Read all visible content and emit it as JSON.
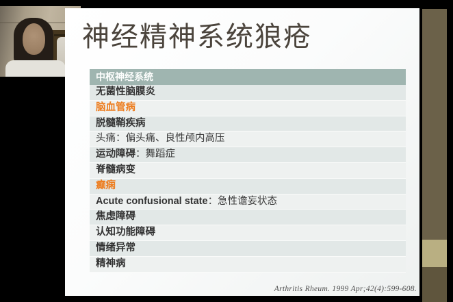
{
  "slide": {
    "title": "神经精神系统狼疮",
    "table": {
      "header": "中枢神经系统",
      "rows": [
        {
          "bold": "无菌性脑膜炎",
          "normal": "",
          "accent": false
        },
        {
          "bold": "脑血管病",
          "normal": "",
          "accent": true
        },
        {
          "bold": "脱髓鞘疾病",
          "normal": "",
          "accent": false
        },
        {
          "bold": "",
          "normal": "头痛：偏头痛、良性颅内高压",
          "accent": false
        },
        {
          "bold": "运动障碍",
          "normal": "：舞蹈症",
          "accent": false
        },
        {
          "bold": "脊髓病变",
          "normal": "",
          "accent": false
        },
        {
          "bold": "癫痫",
          "normal": "",
          "accent": true
        },
        {
          "bold": "Acute confusional state",
          "normal": "：急性谵妄状态",
          "accent": false
        },
        {
          "bold": "焦虑障碍",
          "normal": "",
          "accent": false
        },
        {
          "bold": "认知功能障碍",
          "normal": "",
          "accent": false
        },
        {
          "bold": "情绪异常",
          "normal": "",
          "accent": false
        },
        {
          "bold": "精神病",
          "normal": "",
          "accent": false
        }
      ]
    },
    "citation": "Arthritis Rheum. 1999 Apr;42(4):599-608.",
    "colors": {
      "header_bg": "#9fb5b0",
      "row_alt_dark": "#e2e8e7",
      "row_alt_light": "#eef1f0",
      "accent_orange": "#ed7d1f",
      "title_text": "#4b443c",
      "strip_olive": "#6b6149",
      "strip_khaki": "#b9af82",
      "strip_brown": "#5f553d"
    }
  }
}
